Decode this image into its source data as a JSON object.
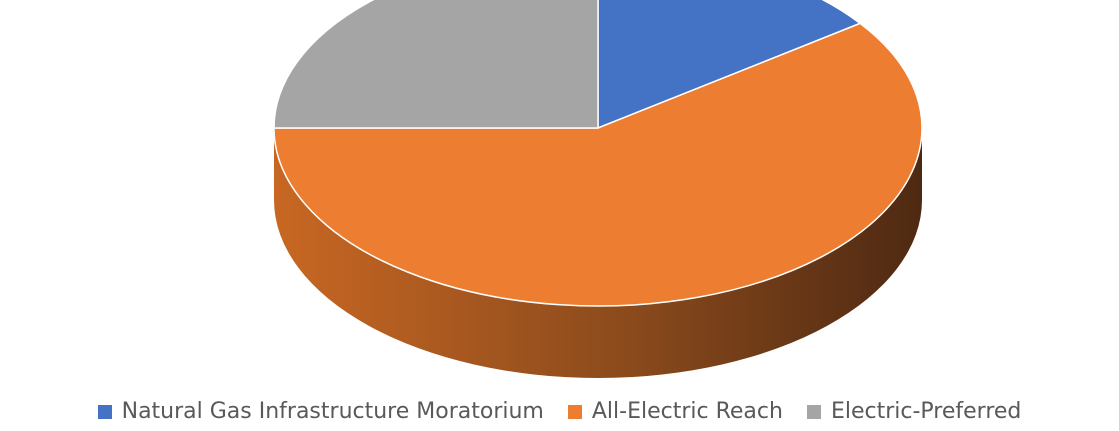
{
  "chart_data": {
    "type": "pie",
    "style": "3d",
    "title": "",
    "legend_position": "bottom",
    "categories": [
      "Natural Gas Infrastructure Moratorium",
      "All-Electric Reach",
      "Electric-Preferred"
    ],
    "values": [
      15,
      60,
      25
    ],
    "colors": [
      "#4472C4",
      "#ED7D31",
      "#A5A5A5"
    ]
  }
}
